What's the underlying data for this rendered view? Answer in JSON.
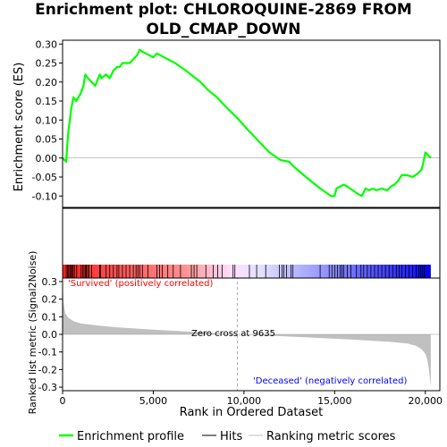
{
  "title_line1": "Enrichment plot: CHLOROQUINE-2869 FROM",
  "title_line2": "OLD_CMAP_DOWN",
  "colors": {
    "es_line": "#00ff00",
    "metric_fill": "#c0c0c0",
    "pos": "#ff0000",
    "neg": "#0000ff",
    "zero_line": "#aaaaaa"
  },
  "chart_data": {
    "type": "line",
    "n_genes": 20300,
    "zero_cross": 9635,
    "es_panel": {
      "ylabel": "Enrichment score (ES)",
      "ylim": [
        -0.13,
        0.31
      ],
      "yticks": [
        -0.1,
        -0.05,
        0.0,
        0.05,
        0.1,
        0.15,
        0.2,
        0.25,
        0.3
      ],
      "ytick_labels": [
        "-0.10",
        "-0.05",
        "0.00",
        "0.05",
        "0.10",
        "0.15",
        "0.20",
        "0.25",
        "0.30"
      ],
      "series": [
        {
          "name": "Enrichment profile",
          "x": [
            0,
            200,
            250,
            320,
            400,
            480,
            600,
            750,
            1000,
            1150,
            1250,
            1400,
            1600,
            1800,
            2050,
            2150,
            2400,
            2600,
            2800,
            3000,
            3150,
            3300,
            3500,
            3700,
            3900,
            4100,
            4250,
            4400,
            4600,
            4800,
            5000,
            5200,
            5400,
            5800,
            6200,
            6800,
            7200,
            7600,
            8000,
            8500,
            9000,
            9635,
            10200,
            10800,
            11400,
            12000,
            12500,
            12800,
            13300,
            13800,
            14200,
            14500,
            14800,
            15000,
            15100,
            15300,
            15500,
            15700,
            16000,
            16300,
            16500,
            16700,
            16900,
            17100,
            17300,
            17600,
            17900,
            18100,
            18300,
            18500,
            18700,
            19000,
            19300,
            19600,
            19800,
            19900,
            20000,
            20300
          ],
          "y": [
            0.0,
            -0.01,
            0.03,
            0.07,
            0.1,
            0.13,
            0.16,
            0.15,
            0.17,
            0.19,
            0.22,
            0.21,
            0.2,
            0.19,
            0.22,
            0.21,
            0.22,
            0.21,
            0.23,
            0.24,
            0.24,
            0.25,
            0.25,
            0.25,
            0.26,
            0.27,
            0.285,
            0.28,
            0.275,
            0.27,
            0.265,
            0.275,
            0.27,
            0.26,
            0.25,
            0.23,
            0.215,
            0.2,
            0.18,
            0.16,
            0.135,
            0.105,
            0.075,
            0.045,
            0.015,
            -0.005,
            -0.01,
            -0.025,
            -0.045,
            -0.065,
            -0.08,
            -0.09,
            -0.1,
            -0.1,
            -0.08,
            -0.075,
            -0.07,
            -0.075,
            -0.085,
            -0.095,
            -0.1,
            -0.08,
            -0.085,
            -0.08,
            -0.085,
            -0.08,
            -0.085,
            -0.075,
            -0.07,
            -0.06,
            -0.045,
            -0.045,
            -0.05,
            -0.04,
            -0.03,
            -0.01,
            0.015,
            0.0
          ]
        }
      ]
    },
    "hits": [
      200,
      270,
      330,
      400,
      450,
      520,
      580,
      650,
      780,
      1020,
      1100,
      1180,
      1250,
      1310,
      1380,
      1450,
      1600,
      2050,
      2100,
      2400,
      2600,
      2800,
      3000,
      3100,
      3300,
      3500,
      3700,
      3900,
      4050,
      4150,
      4250,
      4400,
      4700,
      5200,
      5350,
      5500,
      5800,
      6100,
      6500,
      7100,
      7250,
      7400,
      7900,
      8300,
      8550,
      8800,
      9400,
      9500,
      10300,
      10700,
      11200,
      11950,
      12100,
      12200,
      12350,
      12600,
      12700,
      14200,
      14700,
      14850,
      15000,
      15150,
      15300,
      15400,
      15500,
      15700,
      15900,
      16200,
      16450,
      16600,
      16800,
      17000,
      17200,
      17400,
      17600,
      17800,
      18000,
      18200,
      18400,
      18550,
      18700,
      18900,
      19100,
      19300,
      19500,
      19650,
      19750,
      19850,
      19950
    ],
    "metric_panel": {
      "ylabel": "Ranked list metric (Signal2Noise)",
      "ylim": [
        -0.32,
        0.32
      ],
      "yticks": [
        -0.3,
        -0.2,
        -0.1,
        0.0,
        0.1,
        0.2,
        0.3
      ],
      "ytick_labels": [
        "-0.3",
        "-0.2",
        "-0.1",
        "0.0",
        "0.1",
        "0.2",
        "0.3"
      ],
      "x": [
        0,
        50,
        150,
        300,
        600,
        1000,
        2000,
        3000,
        5000,
        7000,
        9635,
        12000,
        14000,
        16000,
        18000,
        19000,
        19500,
        19800,
        20000,
        20100,
        20200,
        20300
      ],
      "y": [
        0.3,
        0.18,
        0.12,
        0.095,
        0.075,
        0.062,
        0.05,
        0.04,
        0.027,
        0.015,
        0.0,
        -0.01,
        -0.02,
        -0.03,
        -0.042,
        -0.052,
        -0.065,
        -0.085,
        -0.11,
        -0.14,
        -0.2,
        -0.3
      ]
    },
    "xaxis": {
      "xlabel": "Rank in Ordered Dataset",
      "xlim": [
        0,
        20800
      ],
      "xticks": [
        0,
        5000,
        10000,
        15000,
        20000
      ],
      "xtick_labels": [
        "0",
        "5,000",
        "10,000",
        "15,000",
        "20,000"
      ]
    },
    "annotations": {
      "pos_label": "'Survived' (positively correlated)",
      "neg_label": "'Deceased' (negatively correlated)",
      "zero_label": "Zero cross at 9635"
    },
    "legend": {
      "placement": "bottom",
      "items": [
        "Enrichment profile",
        "Hits",
        "Ranking metric scores"
      ]
    }
  }
}
